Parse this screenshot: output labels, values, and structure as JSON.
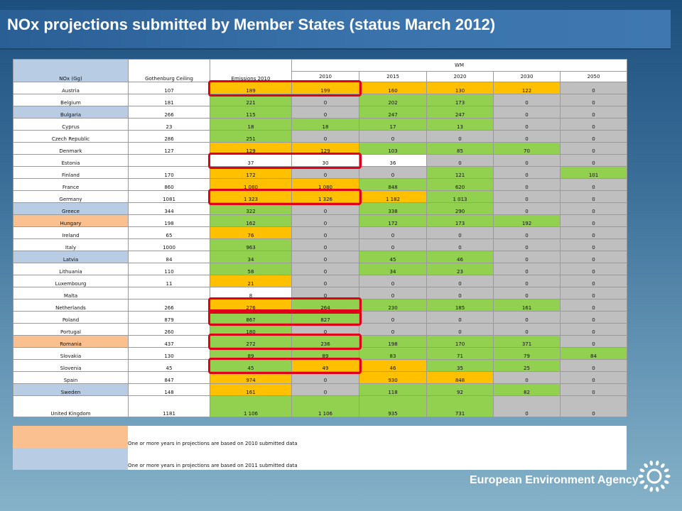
{
  "title": "NOx projections submitted by Member States (status March 2012)",
  "table": {
    "header_col1": "NOx (Gg)",
    "header_col2": "Gothenburg Ceiling",
    "header_col3": "Emissions 2010",
    "group_label": "WM",
    "years": [
      "2010",
      "2015",
      "2020",
      "2030",
      "2050"
    ],
    "rows": [
      {
        "country": "Austria",
        "ceiling": "107",
        "e2010": "189",
        "v": [
          "199",
          "160",
          "130",
          "122",
          "0"
        ],
        "nc": "white",
        "cc": [
          "orange",
          "orange",
          "orange",
          "orange",
          "orange",
          "grey"
        ]
      },
      {
        "country": "Belgium",
        "ceiling": "181",
        "e2010": "221",
        "v": [
          "0",
          "202",
          "173",
          "0",
          "0"
        ],
        "nc": "white",
        "cc": [
          "green",
          "grey",
          "green",
          "green",
          "grey",
          "grey"
        ]
      },
      {
        "country": "Bulgaria",
        "ceiling": "266",
        "e2010": "115",
        "v": [
          "0",
          "247",
          "247",
          "0",
          "0"
        ],
        "nc": "blue",
        "cc": [
          "green",
          "grey",
          "green",
          "green",
          "grey",
          "grey"
        ]
      },
      {
        "country": "Cyprus",
        "ceiling": "23",
        "e2010": "18",
        "v": [
          "18",
          "17",
          "13",
          "0",
          "0"
        ],
        "nc": "white",
        "cc": [
          "green",
          "green",
          "green",
          "green",
          "grey",
          "grey"
        ]
      },
      {
        "country": "Czech Republic",
        "ceiling": "286",
        "e2010": "251",
        "v": [
          "0",
          "0",
          "0",
          "0",
          "0"
        ],
        "nc": "white",
        "cc": [
          "green",
          "grey",
          "grey",
          "grey",
          "grey",
          "grey"
        ]
      },
      {
        "country": "Denmark",
        "ceiling": "127",
        "e2010": "129",
        "v": [
          "129",
          "103",
          "85",
          "70",
          "0"
        ],
        "nc": "white",
        "cc": [
          "orange",
          "orange",
          "green",
          "green",
          "green",
          "grey"
        ]
      },
      {
        "country": "Estonia",
        "ceiling": "",
        "e2010": "37",
        "v": [
          "30",
          "36",
          "0",
          "0",
          "0"
        ],
        "nc": "white",
        "cc": [
          "white",
          "white",
          "white",
          "grey",
          "grey",
          "grey"
        ]
      },
      {
        "country": "Finland",
        "ceiling": "170",
        "e2010": "172",
        "v": [
          "0",
          "0",
          "121",
          "0",
          "101"
        ],
        "nc": "white",
        "cc": [
          "orange",
          "grey",
          "grey",
          "green",
          "grey",
          "green"
        ]
      },
      {
        "country": "France",
        "ceiling": "860",
        "e2010": "1 080",
        "v": [
          "1 080",
          "848",
          "620",
          "0",
          "0"
        ],
        "nc": "white",
        "cc": [
          "orange",
          "orange",
          "green",
          "green",
          "grey",
          "grey"
        ]
      },
      {
        "country": "Germany",
        "ceiling": "1081",
        "e2010": "1 323",
        "v": [
          "1 326",
          "1 182",
          "1 013",
          "0",
          "0"
        ],
        "nc": "white",
        "cc": [
          "orange",
          "orange",
          "orange",
          "green",
          "grey",
          "grey"
        ]
      },
      {
        "country": "Greece",
        "ceiling": "344",
        "e2010": "322",
        "v": [
          "0",
          "338",
          "290",
          "0",
          "0"
        ],
        "nc": "blue",
        "cc": [
          "green",
          "grey",
          "green",
          "green",
          "grey",
          "grey"
        ]
      },
      {
        "country": "Hungary",
        "ceiling": "198",
        "e2010": "162",
        "v": [
          "0",
          "172",
          "173",
          "192",
          "0"
        ],
        "nc": "peach",
        "cc": [
          "green",
          "grey",
          "green",
          "green",
          "green",
          "grey"
        ]
      },
      {
        "country": "Ireland",
        "ceiling": "65",
        "e2010": "76",
        "v": [
          "0",
          "0",
          "0",
          "0",
          "0"
        ],
        "nc": "white",
        "cc": [
          "orange",
          "grey",
          "grey",
          "grey",
          "grey",
          "grey"
        ]
      },
      {
        "country": "Italy",
        "ceiling": "1000",
        "e2010": "963",
        "v": [
          "0",
          "0",
          "0",
          "0",
          "0"
        ],
        "nc": "white",
        "cc": [
          "green",
          "grey",
          "grey",
          "grey",
          "grey",
          "grey"
        ]
      },
      {
        "country": "Latvia",
        "ceiling": "84",
        "e2010": "34",
        "v": [
          "0",
          "45",
          "46",
          "0",
          "0"
        ],
        "nc": "blue",
        "cc": [
          "green",
          "grey",
          "green",
          "green",
          "grey",
          "grey"
        ]
      },
      {
        "country": "Lithuania",
        "ceiling": "110",
        "e2010": "58",
        "v": [
          "0",
          "34",
          "23",
          "0",
          "0"
        ],
        "nc": "white",
        "cc": [
          "green",
          "grey",
          "green",
          "green",
          "grey",
          "grey"
        ]
      },
      {
        "country": "Luxembourg",
        "ceiling": "11",
        "e2010": "21",
        "v": [
          "0",
          "0",
          "0",
          "0",
          "0"
        ],
        "nc": "white",
        "cc": [
          "orange",
          "grey",
          "grey",
          "grey",
          "grey",
          "grey"
        ]
      },
      {
        "country": "Malta",
        "ceiling": "",
        "e2010": "8",
        "v": [
          "0",
          "0",
          "0",
          "0",
          "0"
        ],
        "nc": "white",
        "cc": [
          "white",
          "grey",
          "grey",
          "grey",
          "grey",
          "grey"
        ]
      },
      {
        "country": "Netherlands",
        "ceiling": "266",
        "e2010": "276",
        "v": [
          "264",
          "230",
          "185",
          "161",
          "0"
        ],
        "nc": "white",
        "cc": [
          "orange",
          "green",
          "green",
          "green",
          "green",
          "grey"
        ]
      },
      {
        "country": "Poland",
        "ceiling": "879",
        "e2010": "867",
        "v": [
          "827",
          "0",
          "0",
          "0",
          "0"
        ],
        "nc": "white",
        "cc": [
          "green",
          "green",
          "grey",
          "grey",
          "grey",
          "grey"
        ]
      },
      {
        "country": "Portugal",
        "ceiling": "260",
        "e2010": "180",
        "v": [
          "0",
          "0",
          "0",
          "0",
          "0"
        ],
        "nc": "white",
        "cc": [
          "green",
          "grey",
          "grey",
          "grey",
          "grey",
          "grey"
        ]
      },
      {
        "country": "Romania",
        "ceiling": "437",
        "e2010": "272",
        "v": [
          "236",
          "198",
          "170",
          "371",
          "0"
        ],
        "nc": "peach",
        "cc": [
          "green",
          "green",
          "green",
          "green",
          "green",
          "grey"
        ]
      },
      {
        "country": "Slovakia",
        "ceiling": "130",
        "e2010": "89",
        "v": [
          "89",
          "83",
          "71",
          "79",
          "84"
        ],
        "nc": "white",
        "cc": [
          "green",
          "green",
          "green",
          "green",
          "green",
          "green"
        ]
      },
      {
        "country": "Slovenia",
        "ceiling": "45",
        "e2010": "45",
        "v": [
          "49",
          "46",
          "35",
          "25",
          "0"
        ],
        "nc": "white",
        "cc": [
          "green",
          "orange",
          "orange",
          "green",
          "green",
          "grey"
        ]
      },
      {
        "country": "Spain",
        "ceiling": "847",
        "e2010": "974",
        "v": [
          "0",
          "930",
          "848",
          "0",
          "0"
        ],
        "nc": "white",
        "cc": [
          "orange",
          "grey",
          "orange",
          "orange",
          "grey",
          "grey"
        ]
      },
      {
        "country": "Sweden",
        "ceiling": "148",
        "e2010": "161",
        "v": [
          "0",
          "118",
          "92",
          "82",
          "0"
        ],
        "nc": "blue",
        "cc": [
          "orange",
          "grey",
          "green",
          "green",
          "green",
          "grey"
        ]
      },
      {
        "country": "United Kingdom",
        "ceiling": "1181",
        "e2010": "1 106",
        "v": [
          "1 106",
          "935",
          "731",
          "0",
          "0"
        ],
        "nc": "white",
        "cc": [
          "green",
          "green",
          "green",
          "green",
          "grey",
          "grey"
        ]
      }
    ]
  },
  "legend": [
    {
      "color": "#fac090",
      "text": "One or more years in projections are based on 2010 submitted data"
    },
    {
      "color": "#b8cce4",
      "text": "One or more years in projections are based on 2011 submitted data"
    }
  ],
  "logo_text": "European Environment Agency",
  "highlight_color": "#e0001a"
}
